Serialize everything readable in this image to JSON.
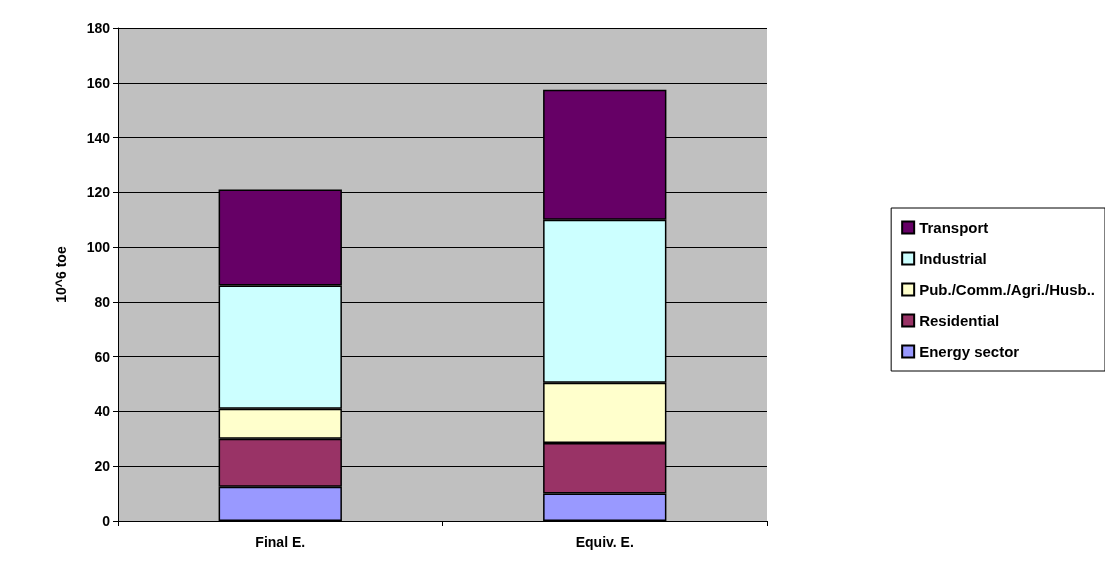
{
  "chart_data": {
    "type": "bar",
    "stacked": true,
    "ylabel": "10^6 toe",
    "categories": [
      "Final E.",
      "Equiv. E."
    ],
    "series": [
      {
        "name": "Energy sector",
        "color": "#9999ff",
        "values": [
          12.5,
          10
        ]
      },
      {
        "name": "Residential",
        "color": "#993366",
        "values": [
          17.5,
          18.5
        ]
      },
      {
        "name": "Pub./Comm./Agri./Husb..",
        "color": "#ffffcc",
        "values": [
          11,
          22
        ]
      },
      {
        "name": "Industrial",
        "color": "#ccffff",
        "values": [
          45,
          59.5
        ]
      },
      {
        "name": "Transport",
        "color": "#660066",
        "values": [
          35,
          47.5
        ]
      }
    ],
    "ylim": [
      0,
      180
    ],
    "yticks": [
      0,
      20,
      40,
      60,
      80,
      100,
      120,
      140,
      160,
      180
    ],
    "grid": "y",
    "legend": "right"
  }
}
